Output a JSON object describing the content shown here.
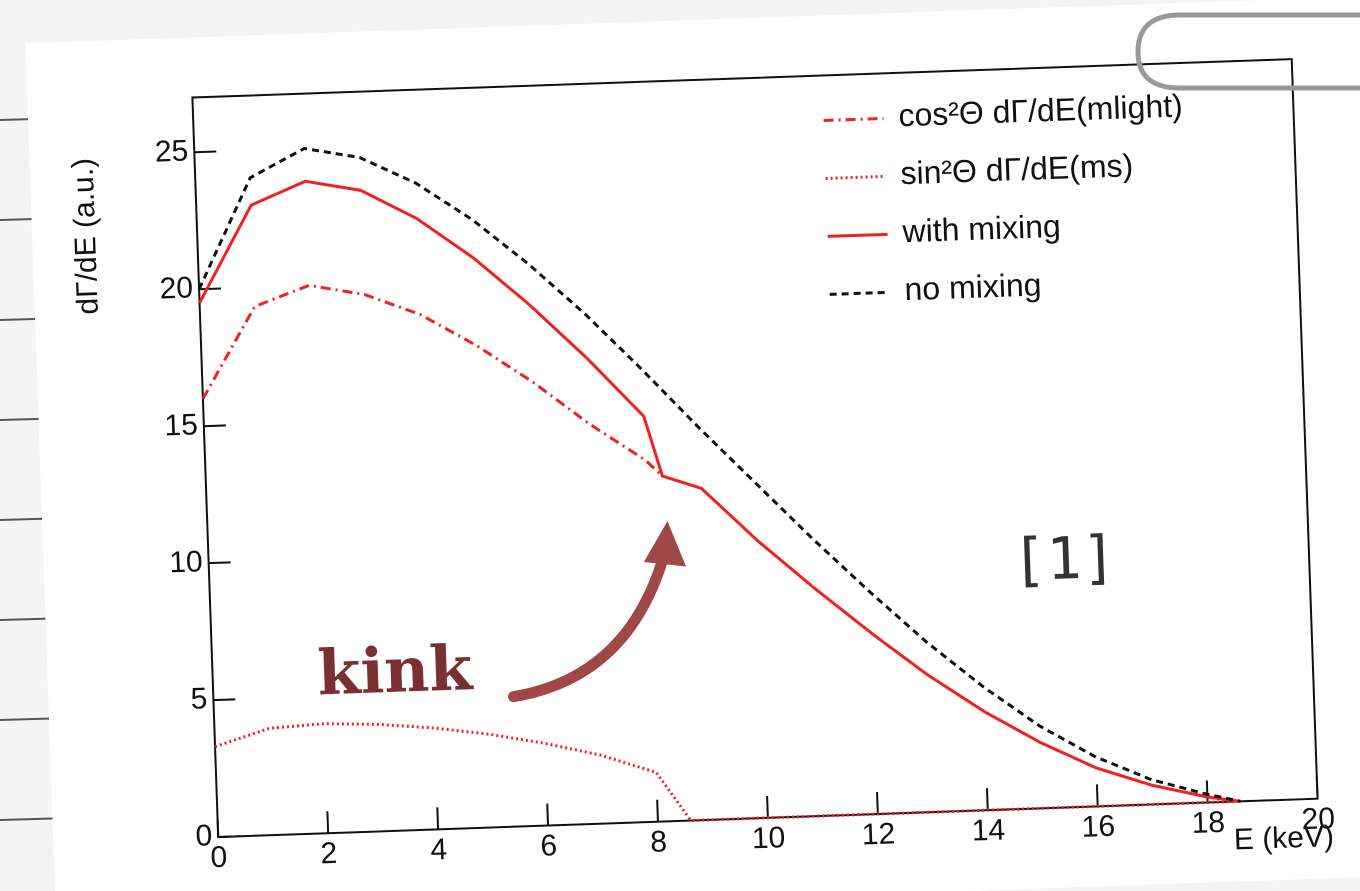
{
  "chart_data": {
    "type": "line",
    "y_label": "dΓ/dE (a.u.)",
    "x_label": "E (keV)",
    "xlim": [
      0,
      20
    ],
    "ylim": [
      0,
      27
    ],
    "xticks": [
      0,
      2,
      4,
      6,
      8,
      10,
      12,
      14,
      16,
      18,
      20
    ],
    "yticks": [
      0,
      5,
      10,
      15,
      20,
      25
    ],
    "legend": "upper right",
    "series": [
      {
        "name": "cos²Θ dΓ/dE(mlight)",
        "color": "#ee2222",
        "dash": "dashdot",
        "x": [
          0,
          1,
          2,
          3,
          4,
          5,
          6,
          7,
          8,
          8.3
        ],
        "values": [
          16,
          19.3,
          20,
          19.6,
          18.8,
          17.6,
          16.2,
          14.6,
          13.2,
          12.6
        ]
      },
      {
        "name": "sin²Θ dΓ/dE(ms)",
        "color": "#ee2222",
        "dash": "dotted",
        "x": [
          0,
          1,
          2,
          3,
          4,
          5,
          6,
          7,
          8,
          8.4,
          8.6,
          12,
          16,
          18.6
        ],
        "values": [
          3.3,
          3.9,
          4.0,
          3.9,
          3.7,
          3.4,
          3.0,
          2.5,
          1.8,
          0.6,
          0,
          0,
          0,
          0
        ]
      },
      {
        "name": "with mixing",
        "color": "#ee2222",
        "dash": "solid",
        "x": [
          0,
          1,
          2,
          3,
          4,
          5,
          6,
          7,
          8,
          8.3,
          9,
          10,
          11,
          12,
          13,
          14,
          15,
          16,
          17,
          18,
          18.6
        ],
        "values": [
          19.5,
          23,
          23.8,
          23.4,
          22.3,
          20.8,
          19,
          17,
          14.8,
          12.6,
          12.1,
          10.1,
          8.3,
          6.6,
          5.0,
          3.6,
          2.4,
          1.4,
          0.7,
          0.2,
          0
        ]
      },
      {
        "name": "no mixing",
        "color": "#111111",
        "dash": "dashed",
        "x": [
          0,
          1,
          2,
          3,
          4,
          5,
          6,
          7,
          8,
          8.5,
          9,
          10,
          11,
          12,
          13,
          14,
          15,
          16,
          17,
          18,
          18.6
        ],
        "values": [
          20,
          24,
          25,
          24.6,
          23.6,
          22.2,
          20.5,
          18.6,
          16.5,
          15.4,
          14.3,
          12.2,
          10.1,
          8.1,
          6.2,
          4.5,
          3.0,
          1.8,
          0.9,
          0.3,
          0
        ]
      }
    ],
    "annotations": [
      "kink",
      "[1]"
    ]
  }
}
